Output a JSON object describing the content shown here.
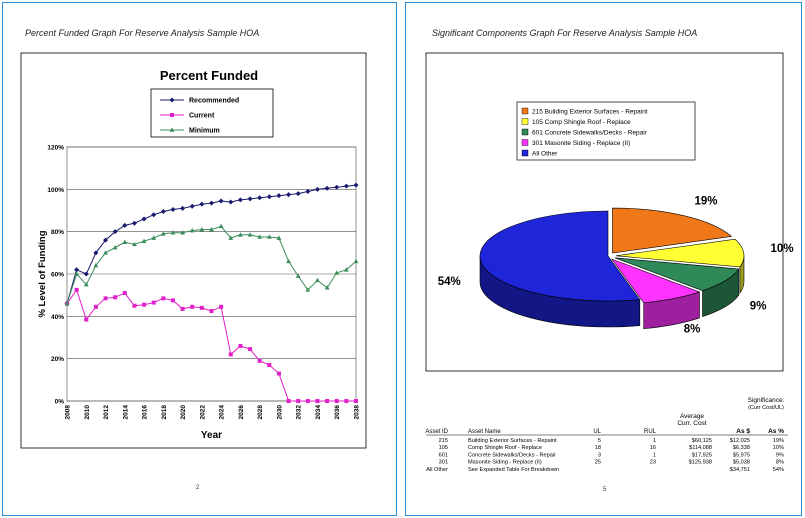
{
  "left_page": {
    "heading": "Percent Funded Graph For Reserve Analysis Sample HOA",
    "page_number": "2"
  },
  "right_page": {
    "heading": "Significant Components Graph For Reserve Analysis Sample HOA",
    "page_number": "5"
  },
  "chart_data": [
    {
      "type": "line",
      "title": "Percent Funded",
      "xlabel": "Year",
      "ylabel": "% Level of Funding",
      "ylim": [
        0,
        120
      ],
      "yticks": [
        "0%",
        "20%",
        "40%",
        "60%",
        "80%",
        "100%",
        "120%"
      ],
      "xticks": [
        "2008",
        "2010",
        "2012",
        "2014",
        "2016",
        "2018",
        "2020",
        "2022",
        "2024",
        "2026",
        "2028",
        "2030",
        "2032",
        "2034",
        "2036",
        "2038"
      ],
      "x": [
        2008,
        2009,
        2010,
        2011,
        2012,
        2013,
        2014,
        2015,
        2016,
        2017,
        2018,
        2019,
        2020,
        2021,
        2022,
        2023,
        2024,
        2025,
        2026,
        2027,
        2028,
        2029,
        2030,
        2031,
        2032,
        2033,
        2034,
        2035,
        2036,
        2037,
        2038
      ],
      "grid": true,
      "legend_position": "top",
      "series": [
        {
          "name": "Recommended",
          "color": "#1a1a6e",
          "marker": "diamond",
          "values": [
            46,
            62,
            60,
            70,
            76,
            80,
            83,
            84,
            86,
            88,
            89.5,
            90.5,
            91,
            92,
            93,
            93.5,
            94.5,
            94,
            95,
            95.5,
            96,
            96.5,
            97,
            97.5,
            98,
            99,
            100,
            100.5,
            101,
            101.5,
            102
          ]
        },
        {
          "name": "Current",
          "color": "#e020c8",
          "marker": "square",
          "values": [
            46,
            52.5,
            38.5,
            44.5,
            48.5,
            49,
            51,
            45,
            45.5,
            46.5,
            48.5,
            47.5,
            43.5,
            44.5,
            44,
            42.5,
            44.5,
            22,
            26,
            24.5,
            19,
            17,
            13,
            0,
            0,
            0,
            0,
            0,
            0,
            0,
            0
          ]
        },
        {
          "name": "Minimum",
          "color": "#3d8c5c",
          "marker": "triangle",
          "values": [
            46,
            60,
            55,
            64,
            70,
            72.5,
            75,
            74,
            75.5,
            77,
            79,
            79.5,
            79.5,
            80.5,
            81,
            81,
            82.5,
            77,
            78.5,
            78.5,
            77.5,
            77.5,
            77,
            66,
            59,
            52.5,
            57,
            53.5,
            60.5,
            62,
            66
          ]
        }
      ]
    },
    {
      "type": "pie",
      "legend_position": "top",
      "slices": [
        {
          "label": "215 Building Exterior Surfaces - Repaint",
          "value": 19,
          "display": "19%",
          "color": "#f07818"
        },
        {
          "label": "105 Comp Shingle Roof - Replace",
          "value": 10,
          "display": "10%",
          "color": "#ffff33"
        },
        {
          "label": "601 Concrete Sidewalks/Decks - Repair",
          "value": 9,
          "display": "9%",
          "color": "#2e8a58"
        },
        {
          "label": "301 Masonite Siding - Replace (II)",
          "value": 8,
          "display": "8%",
          "color": "#ff33ff"
        },
        {
          "label": "All Other",
          "value": 54,
          "display": "54%",
          "color": "#1f25d8"
        }
      ]
    },
    {
      "type": "table",
      "significance_label": "Significance:",
      "significance_sub": "(Curr Cost/UL)",
      "avg_label_1": "Average",
      "avg_label_2": "Curr. Cost",
      "columns": [
        "Asset ID",
        "Asset Name",
        "UL",
        "RUL",
        "Curr. Cost",
        "As $",
        "As %"
      ],
      "rows": [
        [
          "215",
          "Building Exterior Surfaces - Repaint",
          "5",
          "1",
          "$60,125",
          "$12,025",
          "19%"
        ],
        [
          "105",
          "Comp Shingle Roof - Replace",
          "18",
          "16",
          "$114,088",
          "$6,338",
          "10%"
        ],
        [
          "601",
          "Concrete Sidewalks/Decks - Repair",
          "3",
          "1",
          "$17,925",
          "$5,975",
          "9%"
        ],
        [
          "301",
          "Masonite Siding - Replace (II)",
          "25",
          "23",
          "$125,938",
          "$5,038",
          "8%"
        ],
        [
          "All Other",
          "See Expanded Table For Breakdown",
          "",
          "",
          "",
          "$34,751",
          "54%"
        ]
      ]
    }
  ]
}
